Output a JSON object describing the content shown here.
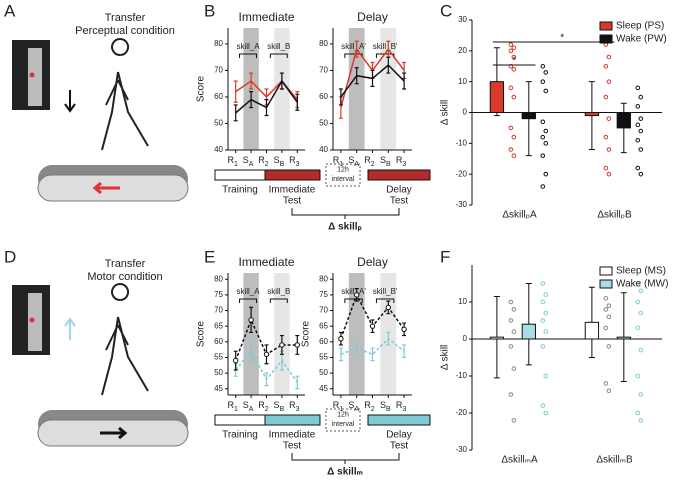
{
  "panel_labels": [
    "A",
    "B",
    "C",
    "D",
    "E",
    "F"
  ],
  "illustrations": [
    {
      "title": "Transfer",
      "subtitle": "Perceptual condition"
    },
    {
      "title": "Transfer",
      "subtitle": "Motor condition"
    }
  ],
  "timelines": [
    {
      "training": "Training",
      "immediate": "Immediate",
      "immediate_sub": "Test",
      "interval": "12h",
      "interval_sub": "interval",
      "delay": "Delay",
      "delay_sub": "Test",
      "measure": "Δ skillₚ",
      "color": "#b22a2a"
    },
    {
      "training": "Training",
      "immediate": "Immediate",
      "immediate_sub": "Test",
      "interval": "12h",
      "interval_sub": "interval",
      "delay": "Delay",
      "delay_sub": "Test",
      "measure": "Δ skillₘ",
      "color": "#7ecbd6"
    }
  ],
  "chart_data": [
    {
      "type": "line",
      "title": "Immediate",
      "ylabel": "Score",
      "categories": [
        "R1",
        "SA",
        "R2",
        "SB",
        "R3"
      ],
      "ylim": [
        40,
        86
      ],
      "yticks": [
        40,
        50,
        60,
        70,
        80
      ],
      "annotations": [
        "skill_A",
        "skill_B"
      ],
      "series": [
        {
          "color": "#d93a2b",
          "values": [
            62,
            66,
            60,
            66,
            59
          ],
          "errors": [
            4,
            3,
            3,
            3,
            3
          ]
        },
        {
          "color": "#111111",
          "values": [
            54,
            59,
            56,
            66,
            58
          ],
          "errors": [
            3,
            3,
            3,
            3,
            3
          ]
        }
      ]
    },
    {
      "type": "line",
      "title": "Delay",
      "categories": [
        "R1",
        "SA",
        "R2",
        "SB",
        "R3"
      ],
      "ylim": [
        40,
        86
      ],
      "yticks": [
        40,
        50,
        60,
        70,
        80
      ],
      "annotations": [
        "skill_A'",
        "skill_B'"
      ],
      "series": [
        {
          "color": "#d93a2b",
          "values": [
            56,
            78,
            70,
            78,
            70
          ],
          "errors": [
            4,
            3,
            3,
            3,
            3
          ]
        },
        {
          "color": "#111111",
          "values": [
            60,
            68,
            67,
            72,
            66
          ],
          "errors": [
            3,
            3,
            3,
            3,
            3
          ]
        }
      ]
    },
    {
      "type": "bar",
      "ylabel": "Δ skill",
      "categories": [
        "ΔskillₚA",
        "ΔskillₚB"
      ],
      "ylim": [
        -30,
        30
      ],
      "yticks": [
        -30,
        -20,
        -10,
        0,
        10,
        20,
        30
      ],
      "legend": "upper right",
      "annotations": [
        "*",
        "*"
      ],
      "series": [
        {
          "name": "Sleep (PS)",
          "color": "#d93a2b",
          "edgecolor": "#111111",
          "point_color": "#d93a2b",
          "values": [
            10,
            -1
          ],
          "errors": [
            11,
            11
          ],
          "points": [
            [
              22,
              21,
              20,
              18,
              15,
              14,
              8,
              5,
              -5,
              -8,
              -12,
              -14
            ],
            [
              22,
              18,
              15,
              10,
              5,
              -2,
              -8,
              -12,
              -18,
              -20
            ]
          ]
        },
        {
          "name": "Wake (PW)",
          "color": "#111111",
          "edgecolor": "#111111",
          "point_color": "#111111",
          "values": [
            -2,
            -5
          ],
          "errors": [
            12,
            8
          ],
          "points": [
            [
              15,
              13,
              10,
              7,
              -3,
              -6,
              -8,
              -10,
              -14,
              -20,
              -24
            ],
            [
              8,
              5,
              2,
              -2,
              -4,
              -6,
              -9,
              -12,
              -18,
              -20
            ]
          ]
        }
      ]
    },
    {
      "type": "line",
      "title": "Immediate",
      "ylabel": "Score",
      "categories": [
        "R1",
        "SA",
        "R2",
        "SB",
        "R3"
      ],
      "ylim": [
        43,
        82
      ],
      "yticks": [
        45,
        50,
        55,
        60,
        65,
        70,
        75,
        80
      ],
      "annotations": [
        "skill_A",
        "skill_B"
      ],
      "series": [
        {
          "color": "#7ecbd6",
          "dashed": true,
          "values": [
            51,
            57,
            48,
            54,
            47
          ],
          "errors": [
            2,
            3,
            2,
            3,
            2
          ]
        },
        {
          "color": "#111111",
          "dashed": true,
          "marker": "o",
          "values": [
            54,
            67,
            56,
            59,
            59
          ],
          "errors": [
            3,
            4,
            3,
            3,
            3
          ]
        }
      ]
    },
    {
      "type": "line",
      "title": "Delay",
      "ylabel": "Score",
      "categories": [
        "R1",
        "SA",
        "R2",
        "SB",
        "R3"
      ],
      "ylim": [
        43,
        82
      ],
      "yticks": [
        45,
        50,
        55,
        60,
        65,
        70,
        75,
        80
      ],
      "annotations": [
        "skill_A'",
        "skill_B'"
      ],
      "series": [
        {
          "color": "#7ecbd6",
          "dashed": true,
          "values": [
            56,
            58,
            56,
            61,
            57
          ],
          "errors": [
            2,
            2,
            2,
            2,
            2
          ]
        },
        {
          "color": "#111111",
          "dashed": true,
          "marker": "o",
          "values": [
            61,
            75,
            65,
            71,
            64
          ],
          "errors": [
            2,
            2,
            2,
            2,
            2
          ]
        }
      ]
    },
    {
      "type": "bar",
      "ylabel": "Δ skill",
      "categories": [
        "ΔskillₘA",
        "ΔskillₘB"
      ],
      "ylim": [
        -30,
        20
      ],
      "yticks": [
        -30,
        -20,
        -10,
        0,
        10
      ],
      "legend": "upper right",
      "series": [
        {
          "name": "Sleep (MS)",
          "color": "#ffffff",
          "edgecolor": "#111111",
          "point_color": "#888888",
          "values": [
            0.5,
            4.5
          ],
          "errors": [
            11,
            9.5
          ],
          "points": [
            [
              10,
              8,
              5,
              2,
              -2,
              -8,
              -15,
              -22
            ],
            [
              11,
              9,
              8,
              6,
              3,
              -2,
              -12,
              -14
            ]
          ]
        },
        {
          "name": "Wake (MW)",
          "color": "#a8dde5",
          "edgecolor": "#111111",
          "point_color": "#7ecbd6",
          "values": [
            4,
            0.5
          ],
          "errors": [
            11,
            12
          ],
          "points": [
            [
              15,
              12,
              10,
              7,
              5,
              2,
              -2,
              -10,
              -18,
              -20
            ],
            [
              15,
              13,
              10,
              7,
              3,
              -3,
              -10,
              -15,
              -20,
              -22
            ]
          ]
        }
      ]
    }
  ]
}
